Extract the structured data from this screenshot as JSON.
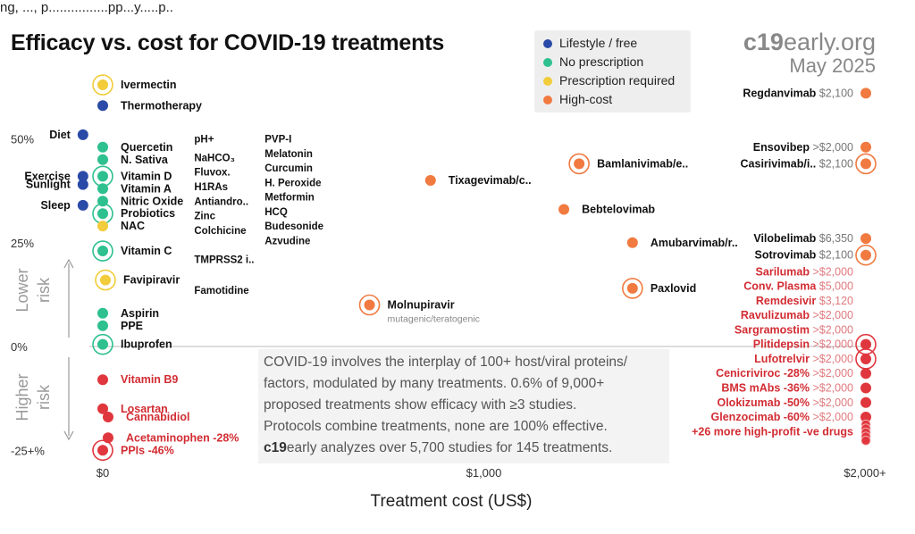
{
  "header_fragment": "ng, ..., p................pp...y.....p..",
  "title": "Efficacy vs. cost for COVID-19 treatments",
  "brand": {
    "site_bold": "c19",
    "site_rest": "early.org",
    "date": "May 2025"
  },
  "legend": [
    {
      "label": "Lifestyle / free",
      "color": "#2a4aa8"
    },
    {
      "label": "No prescription",
      "color": "#2ec08f"
    },
    {
      "label": "Prescription required",
      "color": "#f2cc3a"
    },
    {
      "label": "High-cost",
      "color": "#f07a40"
    }
  ],
  "annotation": {
    "line1": "COVID-19 involves the interplay of 100+ host/viral proteins/",
    "line2": "factors, modulated by many treatments. 0.6% of 9,000+",
    "line3": "proposed treatments show efficacy with ≥3 studies.",
    "line4": "Protocols combine treatments, none are 100% effective.",
    "line5_bold": "c19",
    "line5_rest": "early analyzes over 5,700 studies for 145 treatments."
  },
  "chart_data": {
    "type": "scatter",
    "xlabel": "Treatment cost (US$)",
    "ylabel_upper": [
      "Lower",
      "risk"
    ],
    "ylabel_lower": [
      "Higher",
      "risk"
    ],
    "x_ticks": [
      "$0",
      "$1,000",
      "$2,000+"
    ],
    "y_ticks": [
      "50%",
      "25%",
      "0%",
      "-25+%"
    ],
    "colors": {
      "lifestyle": "#2a4aa8",
      "noprescription": "#2ec08f",
      "prescription": "#f2cc3a",
      "highcost": "#f07a40",
      "negative": "#e0373e"
    },
    "points": [
      {
        "name": "Ivermectin",
        "cost": 0,
        "efficacy": 63,
        "cat": "prescription",
        "ring": true,
        "label": "Ivermectin"
      },
      {
        "name": "Thermotherapy",
        "cost": 0,
        "efficacy": 58,
        "cat": "lifestyle",
        "label": "Thermotherapy"
      },
      {
        "name": "Diet",
        "cost": -52,
        "efficacy": 51,
        "cat": "lifestyle",
        "label": "Diet",
        "labelSide": "left"
      },
      {
        "name": "Quercetin",
        "cost": 0,
        "efficacy": 48,
        "cat": "noprescription",
        "label": "Quercetin"
      },
      {
        "name": "N. Sativa",
        "cost": 0,
        "efficacy": 45,
        "cat": "noprescription",
        "label": "N. Sativa"
      },
      {
        "name": "Exercise",
        "cost": -52,
        "efficacy": 41,
        "cat": "lifestyle",
        "label": "Exercise",
        "labelSide": "left"
      },
      {
        "name": "Sunlight",
        "cost": -52,
        "efficacy": 39,
        "cat": "lifestyle",
        "label": "Sunlight",
        "labelSide": "left"
      },
      {
        "name": "Vitamin D",
        "cost": 0,
        "efficacy": 41,
        "cat": "noprescription",
        "ring": true,
        "label": "Vitamin D"
      },
      {
        "name": "Vitamin A",
        "cost": 0,
        "efficacy": 38,
        "cat": "noprescription",
        "label": "Vitamin A"
      },
      {
        "name": "Sleep",
        "cost": -52,
        "efficacy": 34,
        "cat": "lifestyle",
        "label": "Sleep",
        "labelSide": "left"
      },
      {
        "name": "Nitric Oxide",
        "cost": 0,
        "efficacy": 35,
        "cat": "noprescription",
        "label": "Nitric Oxide"
      },
      {
        "name": "Probiotics",
        "cost": 0,
        "efficacy": 32,
        "cat": "noprescription",
        "ring": true,
        "label": "Probiotics"
      },
      {
        "name": "NAC",
        "cost": 0,
        "efficacy": 29,
        "cat": "prescription",
        "label": "NAC"
      },
      {
        "name": "Vitamin C",
        "cost": 0,
        "efficacy": 23,
        "cat": "noprescription",
        "ring": true,
        "label": "Vitamin C"
      },
      {
        "name": "Favipiravir",
        "cost": 7,
        "efficacy": 16,
        "cat": "prescription",
        "ring": true,
        "label": "Favipiravir"
      },
      {
        "name": "Aspirin",
        "cost": 0,
        "efficacy": 8,
        "cat": "noprescription",
        "label": "Aspirin"
      },
      {
        "name": "PPE",
        "cost": 0,
        "efficacy": 5,
        "cat": "noprescription",
        "label": "PPE"
      },
      {
        "name": "Ibuprofen",
        "cost": 0,
        "efficacy": 0.5,
        "cat": "noprescription",
        "ring": true,
        "label": "Ibuprofen"
      },
      {
        "name": "Vitamin B9",
        "cost": 0,
        "efficacy": -8,
        "cat": "negative",
        "label": "Vitamin B9"
      },
      {
        "name": "Losartan",
        "cost": 0,
        "efficacy": -15,
        "cat": "negative",
        "label": "Losartan"
      },
      {
        "name": "Cannabidiol",
        "cost": 14,
        "efficacy": -17,
        "cat": "negative",
        "label": "Cannabidiol"
      },
      {
        "name": "Acetaminophen",
        "cost": 14,
        "efficacy": -22,
        "cat": "negative",
        "label": "Acetaminophen -28%"
      },
      {
        "name": "PPIs",
        "cost": 0,
        "efficacy": -25,
        "cat": "negative",
        "ring": true,
        "label": "PPIs -46%"
      },
      {
        "name": "Tixagevimab/c..",
        "cost": 860,
        "efficacy": 40,
        "cat": "highcost",
        "label": "Tixagevimab/c.."
      },
      {
        "name": "Molnupiravir",
        "cost": 700,
        "efficacy": 10,
        "cat": "highcost",
        "ring": true,
        "label": "Molnupiravir",
        "sublabel": "mutagenic/teratogenic"
      },
      {
        "name": "Bamlanivimab/e..",
        "cost": 1250,
        "efficacy": 44,
        "cat": "highcost",
        "ring": true,
        "label": "Bamlanivimab/e.."
      },
      {
        "name": "Bebtelovimab",
        "cost": 1210,
        "efficacy": 33,
        "cat": "highcost",
        "label": "Bebtelovimab"
      },
      {
        "name": "Amubarvimab/r..",
        "cost": 1390,
        "efficacy": 25,
        "cat": "highcost",
        "label": "Amubarvimab/r.."
      },
      {
        "name": "Paxlovid",
        "cost": 1390,
        "efficacy": 14,
        "cat": "highcost",
        "ring": true,
        "label": "Paxlovid"
      }
    ],
    "right_column": [
      {
        "name": "Regdanvimab",
        "price": "$2,100",
        "efficacy": 61,
        "cat": "highcost"
      },
      {
        "name": "Ensovibep",
        "price": ">$2,000",
        "efficacy": 48,
        "cat": "highcost"
      },
      {
        "name": "Casirivimab/i..",
        "price": "$2,100",
        "efficacy": 44,
        "cat": "highcost",
        "ring": true
      },
      {
        "name": "Vilobelimab",
        "price": "$6,350",
        "efficacy": 26,
        "cat": "highcost"
      },
      {
        "name": "Sotrovimab",
        "price": "$2,100",
        "efficacy": 22,
        "cat": "highcost",
        "ring": true
      },
      {
        "name": "Sarilumab",
        "price": ">$2,000",
        "efficacy": 18,
        "cat": "negative",
        "noDot": true
      },
      {
        "name": "Conv. Plasma",
        "price": "$5,000",
        "efficacy": 14.5,
        "cat": "negative",
        "noDot": true
      },
      {
        "name": "Remdesivir",
        "price": "$3,120",
        "efficacy": 11,
        "cat": "negative",
        "noDot": true
      },
      {
        "name": "Ravulizumab",
        "price": ">$2,000",
        "efficacy": 7.5,
        "cat": "negative",
        "noDot": true
      },
      {
        "name": "Sargramostim",
        "price": ">$2,000",
        "efficacy": 4,
        "cat": "negative",
        "noDot": true
      },
      {
        "name": "Plitidepsin",
        "price": ">$2,000",
        "efficacy": 0.5,
        "cat": "negative",
        "ring": true
      },
      {
        "name": "Lufotrelvir",
        "price": ">$2,000",
        "efficacy": -3,
        "cat": "negative",
        "ring": true
      },
      {
        "name": "Cenicriviroc -28%",
        "price": ">$2,000",
        "efficacy": -6.5,
        "cat": "negative"
      },
      {
        "name": "BMS mAbs -36%",
        "price": ">$2,000",
        "efficacy": -10,
        "cat": "negative"
      },
      {
        "name": "Olokizumab -50%",
        "price": ">$2,000",
        "efficacy": -13.5,
        "cat": "negative"
      },
      {
        "name": "Glenzocimab -60%",
        "price": ">$2,000",
        "efficacy": -17,
        "cat": "negative"
      },
      {
        "name": "+26 more high-profit -ve drugs",
        "price": "",
        "efficacy": -20.5,
        "cat": "negative",
        "stack": true
      }
    ],
    "text_columns": [
      {
        "cost": 240,
        "items": [
          {
            "label": "pH+",
            "efficacy": 50
          },
          {
            "label": "NaHCO₃",
            "efficacy": 45.5
          },
          {
            "label": "Fluvox.",
            "efficacy": 42
          },
          {
            "label": "H1RAs",
            "efficacy": 38.5
          },
          {
            "label": "Antiandro..",
            "efficacy": 35
          },
          {
            "label": "Zinc",
            "efficacy": 31.5
          },
          {
            "label": "Colchicine",
            "efficacy": 28
          },
          {
            "label": "TMPRSS2 i..",
            "efficacy": 21
          },
          {
            "label": "Famotidine",
            "efficacy": 13.5
          }
        ]
      },
      {
        "cost": 425,
        "items": [
          {
            "label": "PVP-I",
            "efficacy": 50
          },
          {
            "label": "Melatonin",
            "efficacy": 46.5
          },
          {
            "label": "Curcumin",
            "efficacy": 43
          },
          {
            "label": "H. Peroxide",
            "efficacy": 39.5
          },
          {
            "label": "Metformin",
            "efficacy": 36
          },
          {
            "label": "HCQ",
            "efficacy": 32.5
          },
          {
            "label": "Budesonide",
            "efficacy": 29
          },
          {
            "label": "Azvudine",
            "efficacy": 25.5
          }
        ]
      }
    ]
  }
}
